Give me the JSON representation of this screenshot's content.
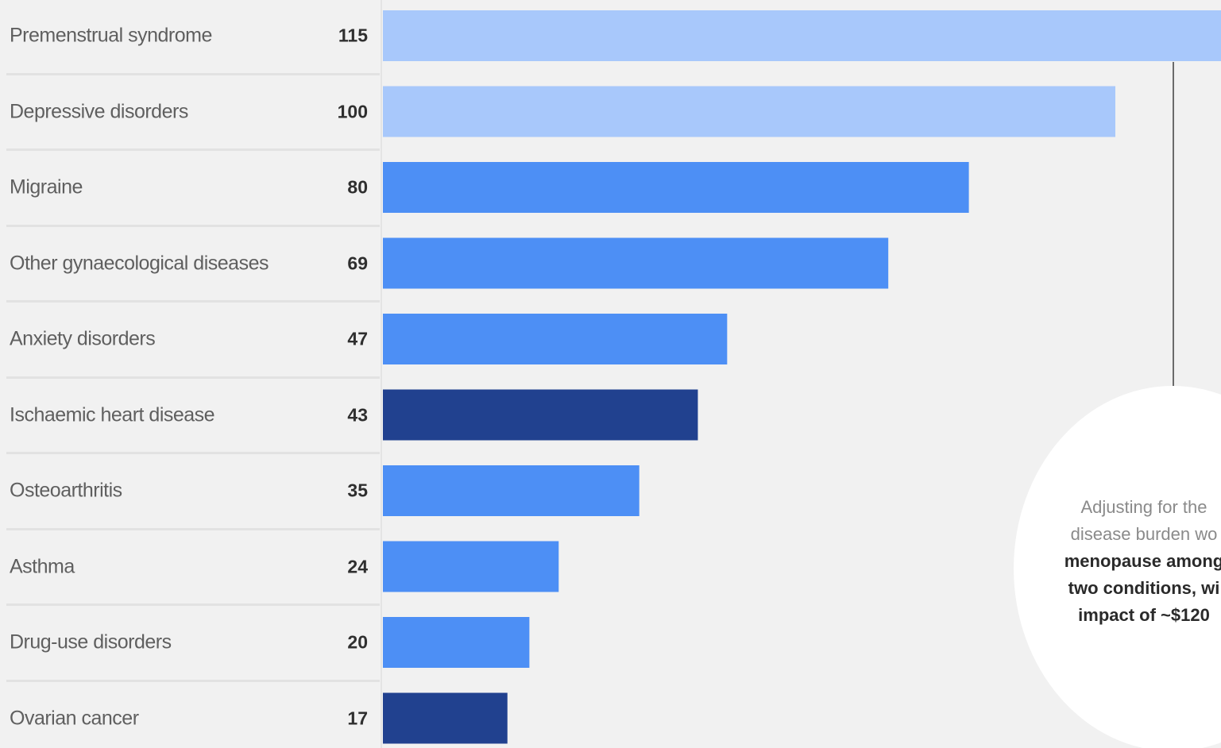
{
  "chart_data": {
    "type": "bar",
    "orientation": "horizontal",
    "categories": [
      "Premenstrual syndrome",
      "Depressive disorders",
      "Migraine",
      "Other gynaecological diseases",
      "Anxiety disorders",
      "Ischaemic heart disease",
      "Osteoarthritis",
      "Asthma",
      "Drug-use disorders",
      "Ovarian cancer"
    ],
    "values": [
      115,
      100,
      80,
      69,
      47,
      43,
      35,
      24,
      20,
      17
    ],
    "value_labels": [
      "115",
      "100",
      "80",
      "69",
      "47",
      "43",
      "35",
      "24",
      "20",
      "17"
    ],
    "bar_colors": [
      "#a8c8fb",
      "#a8c8fb",
      "#4d8ff5",
      "#4d8ff5",
      "#4d8ff5",
      "#21418f",
      "#4d8ff5",
      "#4d8ff5",
      "#4d8ff5",
      "#21418f"
    ],
    "grid": false,
    "legend": "none"
  },
  "callout": {
    "line1": "Adjusting for the",
    "line2": "disease burden wo",
    "line3": "menopause among",
    "line4": "two conditions, wi",
    "line5": "impact of ~$120"
  }
}
